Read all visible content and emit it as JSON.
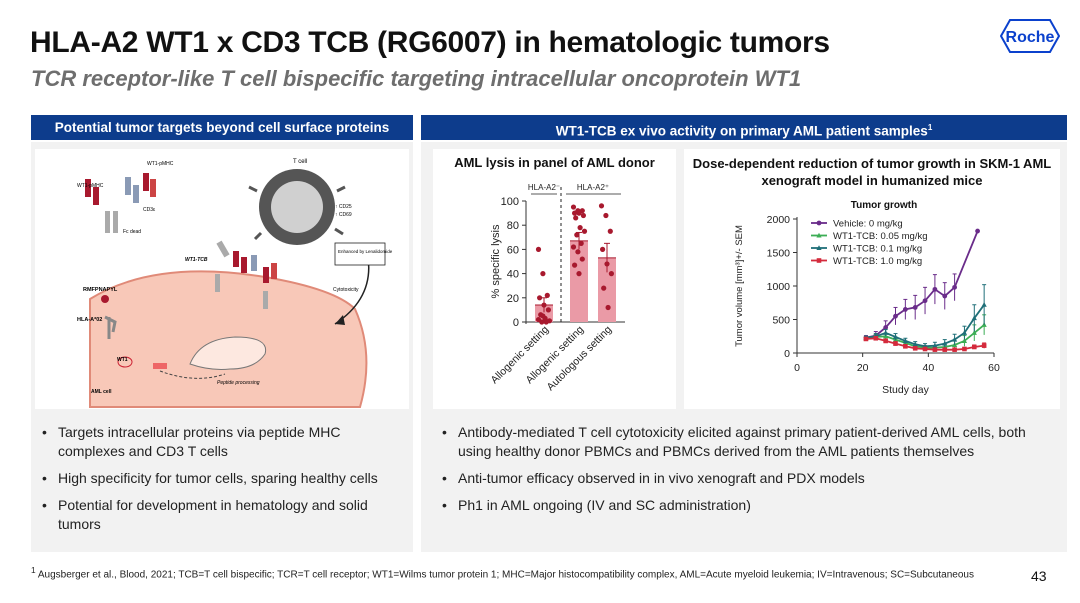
{
  "header": {
    "title": "HLA-A2 WT1 x CD3 TCB (RG6007) in hematologic tumors",
    "subtitle": "TCR receptor-like T cell bispecific targeting intracellular oncoprotein WT1",
    "logo_text": "Roche"
  },
  "left_panel": {
    "header": "Potential tumor targets beyond cell surface proteins",
    "diagram": {
      "labels": {
        "wt1_pmhc_top": "WT1-pMHC",
        "wt1_pmhc_left": "WT1-pMHC",
        "cd3e": "CD3ε",
        "fc_dead": "Fc dead",
        "t_cell": "T cell",
        "cd25": "↑ CD25",
        "cd69": "↑ CD69",
        "enhanced": "Enhanced by Lenalidomide",
        "wt1_tcb": "WT1-TCB",
        "cytotoxicity": "Cytotoxicity",
        "peptide": "RMFPNAPYL",
        "hla": "HLA-A*02",
        "wt1": "WT1",
        "peptide_processing": "Peptide processing",
        "aml_cell": "AML cell"
      }
    },
    "bullets": [
      "Targets intracellular proteins via peptide MHC complexes and CD3 T cells",
      "High specificity for tumor cells, sparing healthy cells",
      "Potential for development in hematology and solid tumors"
    ]
  },
  "right_panel": {
    "header": "WT1-TCB ex vivo activity on primary AML patient samples",
    "header_sup": "1",
    "bullets": [
      "Antibody-mediated T cell cytotoxicity elicited against primary patient-derived AML cells, both using healthy donor PBMCs and PBMCs derived from the AML patients themselves",
      "Anti-tumor efficacy observed in in vivo xenograft and PDX models",
      "Ph1 in AML ongoing (IV and SC administration)"
    ]
  },
  "footnote": {
    "sup": "1",
    "text": "Augsberger et al., Blood, 2021; TCB=T cell bispecific; TCR=T cell receptor; WT1=Wilms tumor protein 1; MHC=Major histocompatibility complex, AML=Acute myeloid leukemia; IV=Intravenous; SC=Subcutaneous"
  },
  "page_number": "43",
  "colors": {
    "navy": "#0d3c8c",
    "bar_fill": "#ea9aa6",
    "dots": "#a8192e",
    "vehicle": "#6a2c8a",
    "dose_005": "#3cae55",
    "dose_01": "#1f6f78",
    "dose_10": "#d42a3c"
  },
  "chart_data": [
    {
      "type": "bar",
      "title": "AML lysis in panel of AML donor",
      "ylabel": "% specific lysis",
      "ylim": [
        0,
        100
      ],
      "yticks": [
        0,
        20,
        40,
        60,
        80,
        100
      ],
      "group_labels": [
        "HLA-A2⁻",
        "HLA-A2⁺"
      ],
      "categories": [
        "Allogenic setting",
        "Allogenic setting",
        "Autologous setting"
      ],
      "values": [
        14,
        67,
        53
      ],
      "errors": [
        6,
        7,
        12
      ],
      "points": [
        [
          60,
          40,
          22,
          20,
          14,
          10,
          6,
          3,
          1,
          0,
          0,
          2,
          5
        ],
        [
          95,
          92,
          92,
          90,
          90,
          88,
          86,
          78,
          75,
          72,
          65,
          62,
          58,
          52,
          47,
          40
        ],
        [
          96,
          88,
          75,
          60,
          48,
          40,
          28,
          12
        ]
      ]
    },
    {
      "type": "line",
      "title": "Dose-dependent reduction of tumor growth in SKM-1 AML xenograft model in humanized mice",
      "subtitle": "Tumor growth",
      "xlabel": "Study day",
      "ylabel": "Tumor volume [mm³]+/- SEM",
      "xlim": [
        0,
        60
      ],
      "ylim": [
        0,
        2000
      ],
      "xticks": [
        0,
        20,
        40,
        60
      ],
      "yticks": [
        0,
        500,
        1000,
        1500,
        2000
      ],
      "series": [
        {
          "name": "Vehicle: 0 mg/kg",
          "x": [
            21,
            24,
            27,
            30,
            33,
            36,
            39,
            42,
            45,
            48,
            55
          ],
          "y": [
            230,
            260,
            380,
            550,
            650,
            680,
            780,
            950,
            850,
            980,
            1820
          ],
          "err": [
            30,
            60,
            100,
            130,
            150,
            180,
            200,
            220,
            200,
            200,
            0
          ]
        },
        {
          "name": "WT1-TCB: 0.05 mg/kg",
          "x": [
            21,
            24,
            27,
            30,
            33,
            36,
            39,
            42,
            45,
            48,
            51,
            54,
            57
          ],
          "y": [
            220,
            240,
            250,
            200,
            150,
            100,
            80,
            80,
            90,
            120,
            180,
            300,
            420
          ],
          "err": [
            20,
            30,
            40,
            40,
            30,
            30,
            30,
            30,
            40,
            60,
            80,
            120,
            150
          ]
        },
        {
          "name": "WT1-TCB: 0.1 mg/kg",
          "x": [
            21,
            24,
            27,
            30,
            33,
            36,
            39,
            42,
            45,
            48,
            51,
            54,
            57
          ],
          "y": [
            230,
            250,
            300,
            240,
            180,
            130,
            100,
            110,
            140,
            200,
            300,
            520,
            720
          ],
          "err": [
            20,
            40,
            50,
            50,
            40,
            40,
            40,
            50,
            60,
            80,
            100,
            200,
            300
          ]
        },
        {
          "name": "WT1-TCB: 1.0 mg/kg",
          "x": [
            21,
            24,
            27,
            30,
            33,
            36,
            39,
            42,
            45,
            48,
            51,
            54,
            57
          ],
          "y": [
            210,
            220,
            180,
            140,
            100,
            70,
            60,
            50,
            50,
            50,
            60,
            90,
            110
          ],
          "err": [
            20,
            20,
            30,
            30,
            20,
            20,
            20,
            20,
            20,
            20,
            20,
            30,
            40
          ]
        }
      ]
    }
  ]
}
